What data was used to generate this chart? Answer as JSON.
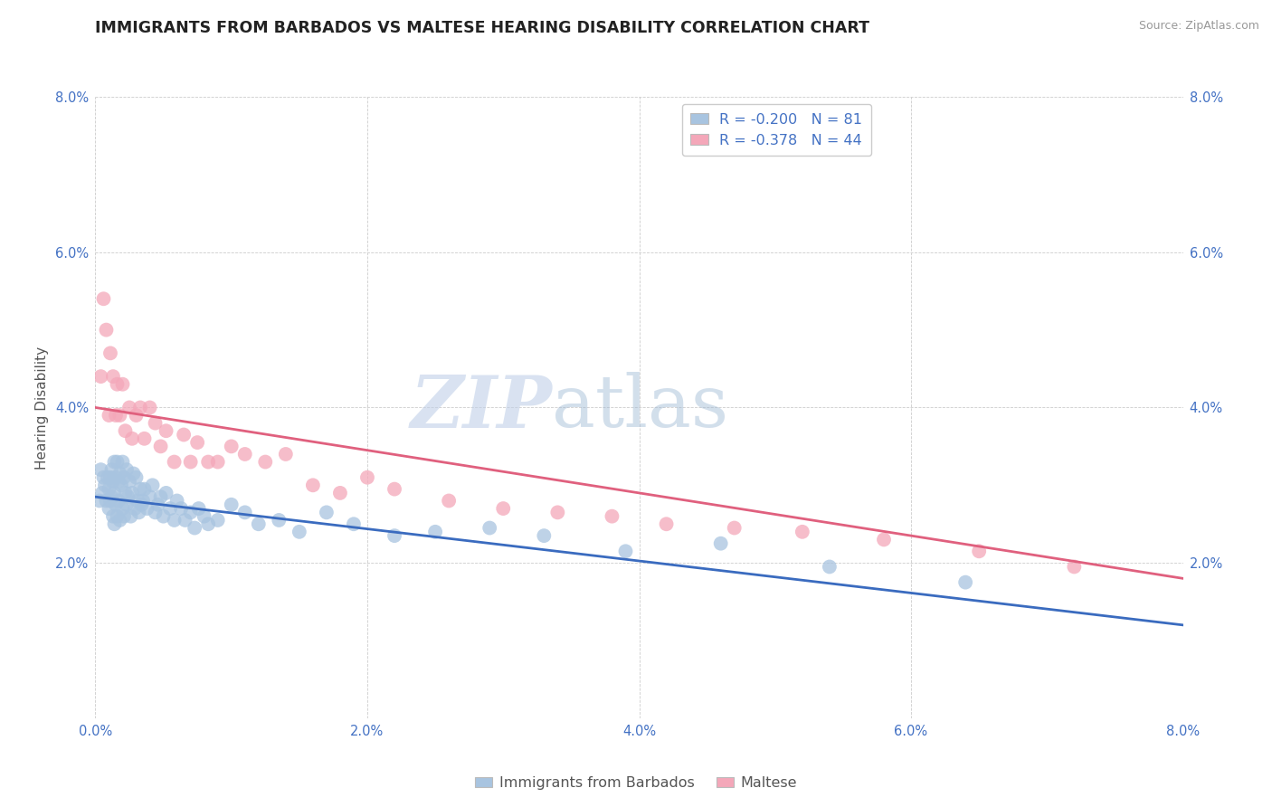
{
  "title": "IMMIGRANTS FROM BARBADOS VS MALTESE HEARING DISABILITY CORRELATION CHART",
  "source": "Source: ZipAtlas.com",
  "ylabel": "Hearing Disability",
  "xlim": [
    0.0,
    0.08
  ],
  "ylim": [
    0.0,
    0.08
  ],
  "x_ticks": [
    0.0,
    0.02,
    0.04,
    0.06,
    0.08
  ],
  "x_tick_labels": [
    "0.0%",
    "2.0%",
    "4.0%",
    "6.0%",
    "8.0%"
  ],
  "y_ticks": [
    0.0,
    0.02,
    0.04,
    0.06,
    0.08
  ],
  "y_tick_labels_left": [
    "",
    "2.0%",
    "4.0%",
    "6.0%",
    "8.0%"
  ],
  "y_tick_labels_right": [
    "2.0%",
    "4.0%",
    "6.0%",
    "8.0%"
  ],
  "grid_color": "#cccccc",
  "background_color": "#ffffff",
  "watermark_zip": "ZIP",
  "watermark_atlas": "atlas",
  "series": [
    {
      "name": "Immigrants from Barbados",
      "R": -0.2,
      "N": 81,
      "scatter_color": "#a8c4e0",
      "line_color": "#3a6bbf",
      "x": [
        0.0003,
        0.0004,
        0.0005,
        0.0006,
        0.0007,
        0.0008,
        0.0009,
        0.001,
        0.001,
        0.0011,
        0.0011,
        0.0012,
        0.0012,
        0.0013,
        0.0013,
        0.0014,
        0.0014,
        0.0014,
        0.0015,
        0.0015,
        0.0016,
        0.0016,
        0.0017,
        0.0017,
        0.0018,
        0.0018,
        0.0019,
        0.002,
        0.002,
        0.0021,
        0.0021,
        0.0022,
        0.0023,
        0.0023,
        0.0024,
        0.0025,
        0.0026,
        0.0027,
        0.0028,
        0.0029,
        0.003,
        0.0031,
        0.0032,
        0.0033,
        0.0034,
        0.0035,
        0.0036,
        0.0038,
        0.004,
        0.0042,
        0.0044,
        0.0046,
        0.0048,
        0.005,
        0.0052,
        0.0055,
        0.0058,
        0.006,
        0.0063,
        0.0066,
        0.007,
        0.0073,
        0.0076,
        0.008,
        0.0083,
        0.009,
        0.01,
        0.011,
        0.012,
        0.0135,
        0.015,
        0.017,
        0.019,
        0.022,
        0.025,
        0.029,
        0.033,
        0.039,
        0.046,
        0.054,
        0.064
      ],
      "y": [
        0.028,
        0.032,
        0.029,
        0.031,
        0.03,
        0.028,
        0.031,
        0.0295,
        0.027,
        0.031,
        0.028,
        0.032,
        0.0285,
        0.0305,
        0.026,
        0.033,
        0.029,
        0.025,
        0.031,
        0.0275,
        0.033,
        0.026,
        0.0305,
        0.028,
        0.0315,
        0.0255,
        0.03,
        0.033,
        0.027,
        0.031,
        0.026,
        0.029,
        0.032,
        0.0275,
        0.0285,
        0.0305,
        0.026,
        0.029,
        0.0315,
        0.027,
        0.031,
        0.028,
        0.0265,
        0.0295,
        0.0275,
        0.028,
        0.0295,
        0.027,
        0.0285,
        0.03,
        0.0265,
        0.0275,
        0.0285,
        0.026,
        0.029,
        0.027,
        0.0255,
        0.028,
        0.027,
        0.0255,
        0.0265,
        0.0245,
        0.027,
        0.026,
        0.025,
        0.0255,
        0.0275,
        0.0265,
        0.025,
        0.0255,
        0.024,
        0.0265,
        0.025,
        0.0235,
        0.024,
        0.0245,
        0.0235,
        0.0215,
        0.0225,
        0.0195,
        0.0175
      ]
    },
    {
      "name": "Maltese",
      "R": -0.378,
      "N": 44,
      "scatter_color": "#f4a7b9",
      "line_color": "#e0607e",
      "x": [
        0.0004,
        0.0006,
        0.0008,
        0.001,
        0.0011,
        0.0013,
        0.0015,
        0.0016,
        0.0018,
        0.002,
        0.0022,
        0.0025,
        0.0027,
        0.003,
        0.0033,
        0.0036,
        0.004,
        0.0044,
        0.0048,
        0.0052,
        0.0058,
        0.0065,
        0.007,
        0.0075,
        0.0083,
        0.009,
        0.01,
        0.011,
        0.0125,
        0.014,
        0.016,
        0.018,
        0.02,
        0.022,
        0.026,
        0.03,
        0.034,
        0.038,
        0.042,
        0.047,
        0.052,
        0.058,
        0.065,
        0.072
      ],
      "y": [
        0.044,
        0.054,
        0.05,
        0.039,
        0.047,
        0.044,
        0.039,
        0.043,
        0.039,
        0.043,
        0.037,
        0.04,
        0.036,
        0.039,
        0.04,
        0.036,
        0.04,
        0.038,
        0.035,
        0.037,
        0.033,
        0.0365,
        0.033,
        0.0355,
        0.033,
        0.033,
        0.035,
        0.034,
        0.033,
        0.034,
        0.03,
        0.029,
        0.031,
        0.0295,
        0.028,
        0.027,
        0.0265,
        0.026,
        0.025,
        0.0245,
        0.024,
        0.023,
        0.0215,
        0.0195
      ]
    }
  ],
  "trend_lines": [
    {
      "x_start": 0.0,
      "y_start": 0.0285,
      "x_end": 0.08,
      "y_end": 0.012
    },
    {
      "x_start": 0.0,
      "y_start": 0.04,
      "x_end": 0.08,
      "y_end": 0.018
    }
  ],
  "title_fontsize": 12.5,
  "axis_label_fontsize": 11,
  "tick_fontsize": 10.5,
  "legend_fontsize": 11.5
}
